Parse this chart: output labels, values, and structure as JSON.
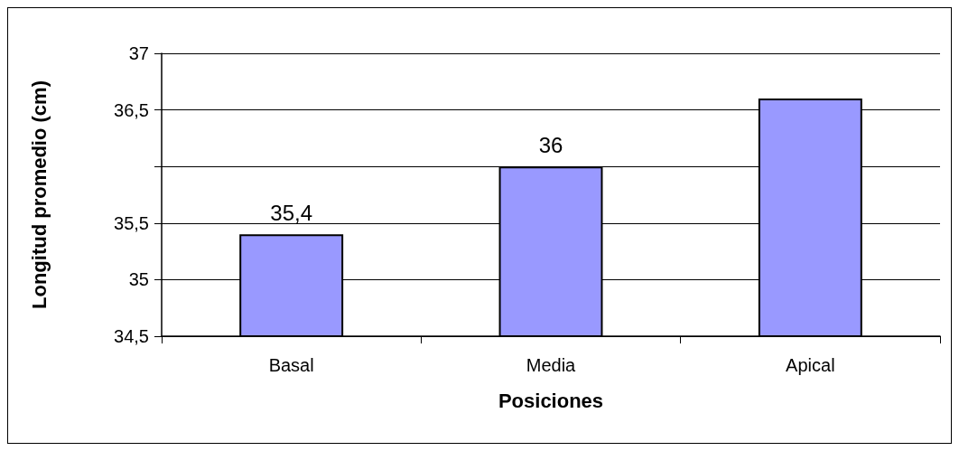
{
  "chart_data": {
    "type": "bar",
    "xlabel": "Posiciones",
    "ylabel": "Longitud promedio (cm)",
    "categories": [
      "Basal",
      "Media",
      "Apical"
    ],
    "series": [
      {
        "color": "#9999ff",
        "values": [
          35.4,
          36,
          36.6
        ],
        "value_labels": [
          "35,4",
          "36",
          null
        ]
      }
    ],
    "ylim": [
      34.5,
      37
    ],
    "yticks": [
      {
        "value": 34.5,
        "label": "34,5"
      },
      35,
      {
        "value": 35.5,
        "label": "35,5"
      },
      {
        "value": 36,
        "label": null
      },
      {
        "value": 36.5,
        "label": "36,5"
      },
      37
    ],
    "grid": "y"
  }
}
